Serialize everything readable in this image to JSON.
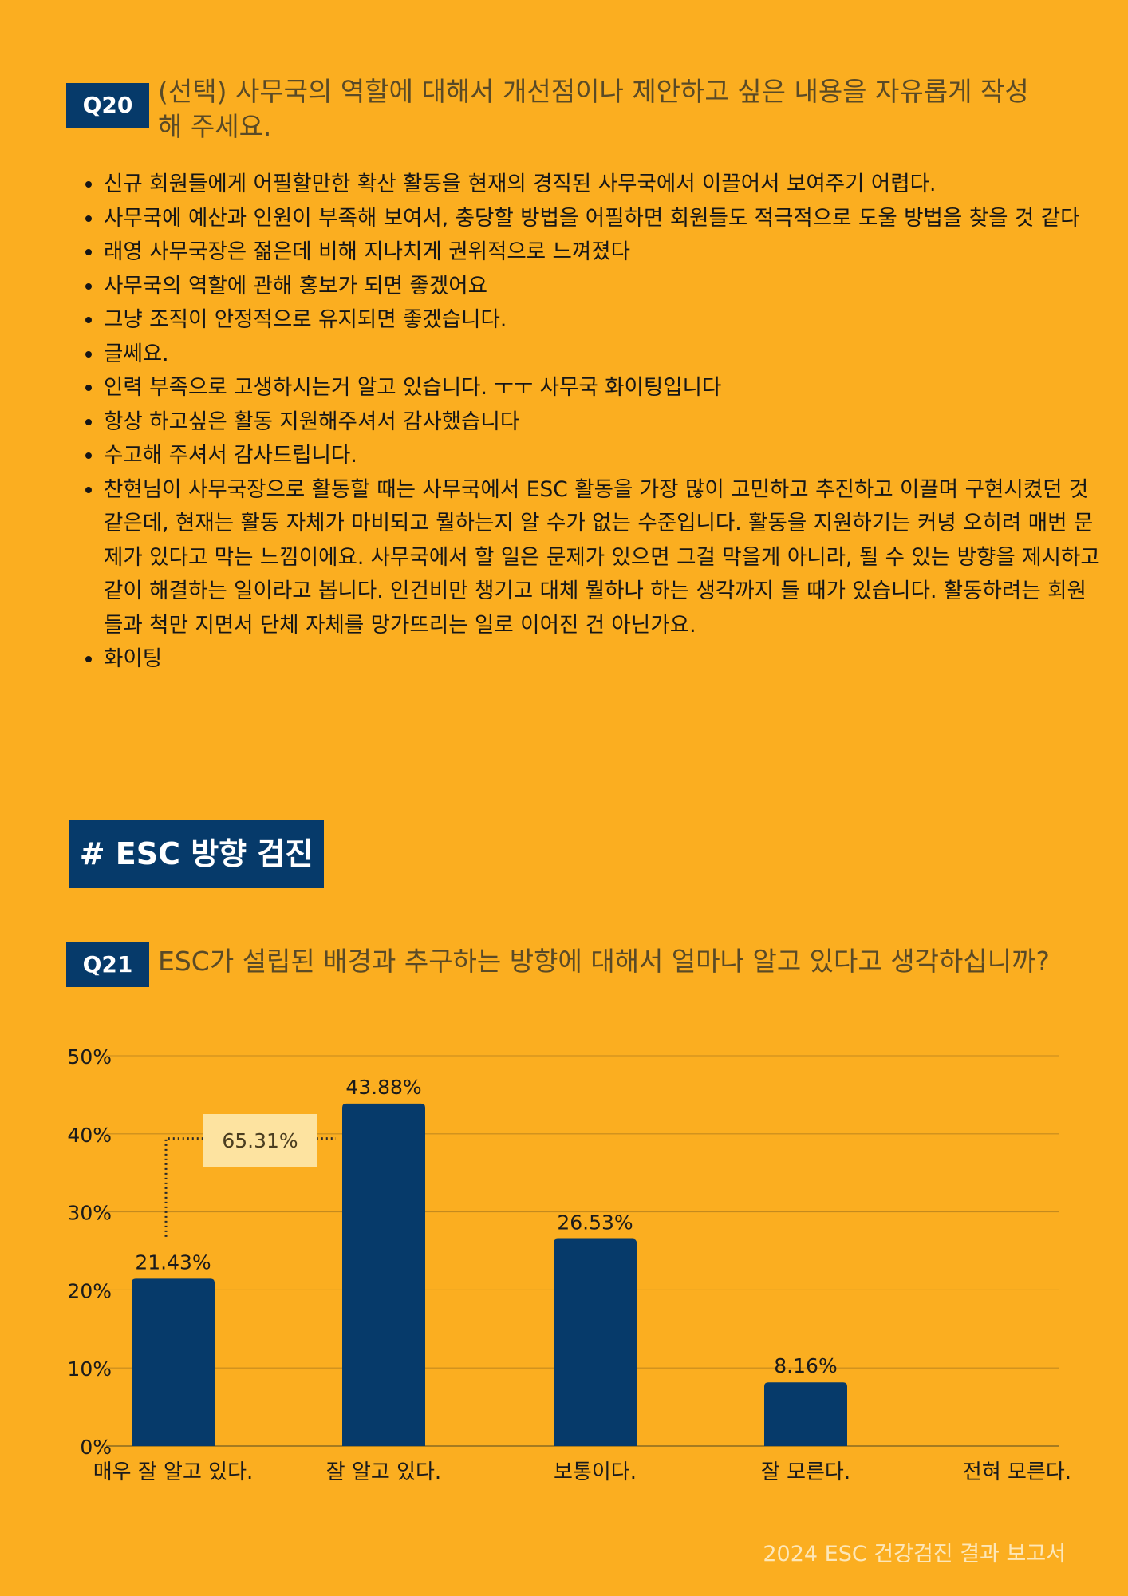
{
  "q20": {
    "badge": "Q20",
    "title_line1": "(선택) 사무국의 역할에 대해서 개선점이나 제안하고 싶은 내용을 자유롭게 작성",
    "title_line2": "해 주세요.",
    "answers": [
      "신규 회원들에게 어필할만한 확산 활동을 현재의 경직된 사무국에서 이끌어서 보여주기 어렵다.",
      "사무국에 예산과 인원이 부족해 보여서, 충당할 방법을 어필하면 회원들도 적극적으로 도울 방법을 찾을 것 같다",
      "래영 사무국장은 젊은데 비해 지나치게 권위적으로 느껴졌다",
      "사무국의 역할에 관해 홍보가 되면 좋겠어요",
      "그냥 조직이 안정적으로 유지되면 좋겠습니다.",
      "글쎄요.",
      "인력 부족으로 고생하시는거 알고 있습니다. ㅜㅜ 사무국 화이팅입니다",
      "항상 하고싶은 활동 지원해주셔서 감사했습니다",
      "수고해 주셔서 감사드립니다.",
      "찬현님이 사무국장으로 활동할 때는 사무국에서 ESC 활동을 가장 많이 고민하고 추진하고 이끌며 구현시켰던 것 같은데, 현재는 활동 자체가 마비되고 뭘하는지 알 수가 없는 수준입니다. 활동을 지원하기는 커녕 오히려 매번 문제가 있다고 막는 느낌이에요. 사무국에서 할 일은 문제가 있으면 그걸 막을게 아니라, 될 수 있는 방향을 제시하고 같이 해결하는 일이라고 봅니다. 인건비만 챙기고 대체 뭘하나 하는 생각까지 들 때가 있습니다. 활동하려는 회원들과 척만 지면서 단체 자체를 망가뜨리는 일로 이어진 건 아닌가요.",
      "화이팅"
    ]
  },
  "section": {
    "title": "# ESC 방향 검진"
  },
  "q21": {
    "badge": "Q21",
    "title": "ESC가 설립된 배경과 추구하는 방향에 대해서 얼마나 알고 있다고 생각하십니까?"
  },
  "chart_data": {
    "type": "bar",
    "categories": [
      "매우 잘 알고 있다.",
      "잘 알고 있다.",
      "보통이다.",
      "잘 모른다.",
      "전혀 모른다."
    ],
    "values": [
      21.43,
      43.88,
      26.53,
      8.16,
      0
    ],
    "value_labels": [
      "21.43%",
      "43.88%",
      "26.53%",
      "8.16%",
      ""
    ],
    "y_ticks": [
      "0%",
      "10%",
      "20%",
      "30%",
      "40%",
      "50%"
    ],
    "ylim": [
      0,
      50
    ],
    "grid": true,
    "bar_color": "#063A6A",
    "annotation": {
      "text": "65.31%",
      "connects": [
        "매우 잘 알고 있다.",
        "잘 알고 있다."
      ]
    }
  },
  "footer": {
    "text": "2024 ESC 건강검진 결과 보고서"
  }
}
